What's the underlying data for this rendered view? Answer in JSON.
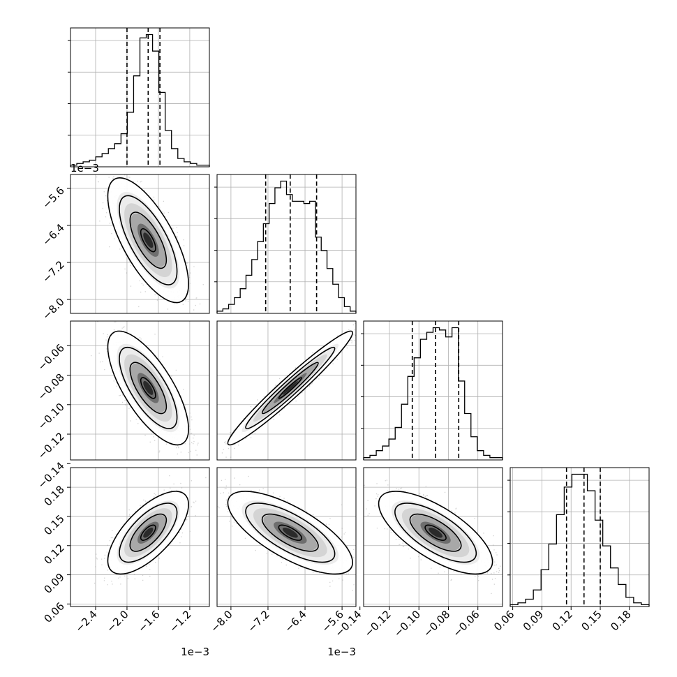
{
  "chart_data": {
    "type": "corner",
    "grid": true,
    "variables": [
      {
        "range": [
          -0.00272,
          -0.00095
        ],
        "ticks": [
          -0.0024,
          -0.002,
          -0.0016,
          -0.0012
        ],
        "tick_labels": [
          "−2.4",
          "−2.0",
          "−1.6",
          "−1.2"
        ],
        "offset_text": "1e−3",
        "quantiles": [
          -0.002,
          -0.00173,
          -0.00158
        ],
        "hist": [
          1,
          2,
          3,
          4,
          6,
          8,
          11,
          14,
          20,
          33,
          55,
          78,
          80,
          70,
          45,
          22,
          11,
          5,
          3,
          2,
          1,
          1
        ]
      },
      {
        "range": [
          -0.0083,
          -0.0053
        ],
        "ticks": [
          -0.008,
          -0.0072,
          -0.0064,
          -0.0056
        ],
        "tick_labels": [
          "−8.0",
          "−7.2",
          "−6.4",
          "−5.6"
        ],
        "offset_text": "1e−3",
        "quantiles": [
          -0.00725,
          -0.00672,
          -0.00615
        ],
        "hist": [
          1,
          2,
          4,
          7,
          11,
          17,
          24,
          32,
          40,
          49,
          56,
          59,
          53,
          50,
          50,
          49,
          50,
          34,
          28,
          20,
          13,
          7,
          3,
          1
        ]
      },
      {
        "range": [
          -0.1375,
          -0.0433
        ],
        "ticks": [
          -0.14,
          -0.12,
          -0.1,
          -0.08,
          -0.06
        ],
        "tick_labels": [
          "−0.14",
          "−0.12",
          "−0.10",
          "−0.08",
          "−0.06"
        ],
        "offset_text": "",
        "quantiles": [
          -0.1045,
          -0.0887,
          -0.073
        ],
        "hist": [
          1,
          2,
          4,
          6,
          9,
          14,
          24,
          36,
          44,
          52,
          55,
          57,
          56,
          53,
          57,
          34,
          20,
          10,
          4,
          2,
          1,
          1
        ]
      },
      {
        "range": [
          0.0574,
          0.2002
        ],
        "ticks": [
          0.06,
          0.09,
          0.12,
          0.15,
          0.18
        ],
        "tick_labels": [
          "0.06",
          "0.09",
          "0.12",
          "0.15",
          "0.18"
        ],
        "offset_text": "",
        "quantiles": [
          0.1153,
          0.1333,
          0.15
        ],
        "hist": [
          1,
          2,
          4,
          9,
          20,
          34,
          50,
          65,
          72,
          72,
          63,
          47,
          33,
          21,
          12,
          5,
          2,
          1
        ]
      }
    ],
    "correlations": [
      {
        "pair": [
          1,
          0
        ],
        "rho": -0.7
      },
      {
        "pair": [
          2,
          0
        ],
        "rho": -0.72
      },
      {
        "pair": [
          2,
          1
        ],
        "rho": 0.97
      },
      {
        "pair": [
          3,
          0
        ],
        "rho": 0.68
      },
      {
        "pair": [
          3,
          1
        ],
        "rho": -0.72
      },
      {
        "pair": [
          3,
          2
        ],
        "rho": -0.7
      }
    ]
  }
}
